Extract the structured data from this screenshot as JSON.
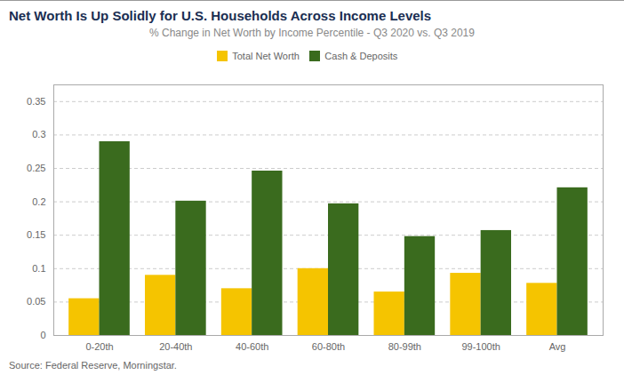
{
  "chart_data": {
    "type": "bar",
    "title": "Net Worth Is Up Solidly for U.S. Households Across Income Levels",
    "subtitle": "% Change in Net Worth by Income Percentile - Q3 2020 vs. Q3 2019",
    "source": "Source: Federal Reserve, Morningstar.",
    "categories": [
      "0-20th",
      "20-40th",
      "40-60th",
      "60-80th",
      "80-99th",
      "99-100th",
      "Avg"
    ],
    "series": [
      {
        "name": "Total Net Worth",
        "color": "#F5C400",
        "values": [
          0.055,
          0.09,
          0.07,
          0.1,
          0.065,
          0.093,
          0.078
        ]
      },
      {
        "name": "Cash & Deposits",
        "color": "#3A6B1E",
        "values": [
          0.29,
          0.201,
          0.246,
          0.197,
          0.148,
          0.157,
          0.221
        ]
      }
    ],
    "ylim": [
      0,
      0.375
    ],
    "yticks": [
      0,
      0.05,
      0.1,
      0.15,
      0.2,
      0.25,
      0.3,
      0.35
    ],
    "grid": true,
    "legend": "top"
  }
}
